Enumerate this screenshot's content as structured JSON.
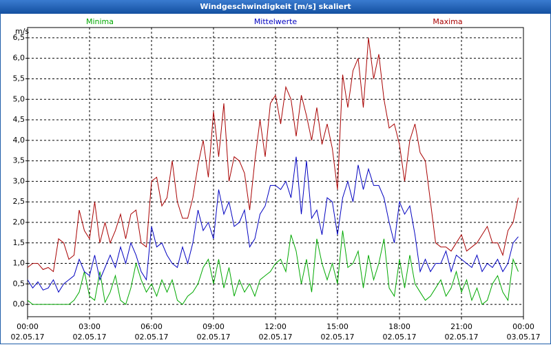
{
  "chart_data": {
    "type": "line",
    "title": "Windgeschwindigkeit [m/s] skaliert",
    "y_label": "m/s",
    "x": [
      "02.05.17 00:00",
      "02.05.17 00:15",
      "02.05.17 00:30",
      "02.05.17 00:45",
      "02.05.17 01:00",
      "02.05.17 01:15",
      "02.05.17 01:30",
      "02.05.17 01:45",
      "02.05.17 02:00",
      "02.05.17 02:15",
      "02.05.17 02:30",
      "02.05.17 02:45",
      "02.05.17 03:00",
      "02.05.17 03:15",
      "02.05.17 03:30",
      "02.05.17 03:45",
      "02.05.17 04:00",
      "02.05.17 04:15",
      "02.05.17 04:30",
      "02.05.17 04:45",
      "02.05.17 05:00",
      "02.05.17 05:15",
      "02.05.17 05:30",
      "02.05.17 05:45",
      "02.05.17 06:00",
      "02.05.17 06:15",
      "02.05.17 06:30",
      "02.05.17 06:45",
      "02.05.17 07:00",
      "02.05.17 07:15",
      "02.05.17 07:30",
      "02.05.17 07:45",
      "02.05.17 08:00",
      "02.05.17 08:15",
      "02.05.17 08:30",
      "02.05.17 08:45",
      "02.05.17 09:00",
      "02.05.17 09:15",
      "02.05.17 09:30",
      "02.05.17 09:45",
      "02.05.17 10:00",
      "02.05.17 10:15",
      "02.05.17 10:30",
      "02.05.17 10:45",
      "02.05.17 11:00",
      "02.05.17 11:15",
      "02.05.17 11:30",
      "02.05.17 11:45",
      "02.05.17 12:00",
      "02.05.17 12:15",
      "02.05.17 12:30",
      "02.05.17 12:45",
      "02.05.17 13:00",
      "02.05.17 13:15",
      "02.05.17 13:30",
      "02.05.17 13:45",
      "02.05.17 14:00",
      "02.05.17 14:15",
      "02.05.17 14:30",
      "02.05.17 14:45",
      "02.05.17 15:00",
      "02.05.17 15:15",
      "02.05.17 15:30",
      "02.05.17 15:45",
      "02.05.17 16:00",
      "02.05.17 16:15",
      "02.05.17 16:30",
      "02.05.17 16:45",
      "02.05.17 17:00",
      "02.05.17 17:15",
      "02.05.17 17:30",
      "02.05.17 17:45",
      "02.05.17 18:00",
      "02.05.17 18:15",
      "02.05.17 18:30",
      "02.05.17 18:45",
      "02.05.17 19:00",
      "02.05.17 19:15",
      "02.05.17 19:30",
      "02.05.17 19:45",
      "02.05.17 20:00",
      "02.05.17 20:15",
      "02.05.17 20:30",
      "02.05.17 20:45",
      "02.05.17 21:00",
      "02.05.17 21:15",
      "02.05.17 21:30",
      "02.05.17 21:45",
      "02.05.17 22:00",
      "02.05.17 22:15",
      "02.05.17 22:30",
      "02.05.17 22:45",
      "02.05.17 23:00",
      "02.05.17 23:15",
      "02.05.17 23:30",
      "02.05.17 23:45"
    ],
    "series": [
      {
        "name": "Minima",
        "color": "#00a800",
        "values": [
          0.1,
          0,
          0,
          0,
          0,
          0,
          0,
          0,
          0,
          0.1,
          0.3,
          0.8,
          0.2,
          0.1,
          0.8,
          0.05,
          0.3,
          0.7,
          0.1,
          0,
          0.4,
          1.0,
          0.6,
          0.3,
          0.5,
          0.2,
          0.6,
          0.3,
          0.6,
          0.1,
          0,
          0.2,
          0.3,
          0.5,
          0.9,
          1.1,
          0.5,
          1.1,
          0.4,
          0.9,
          0.2,
          0.6,
          0.3,
          0.5,
          0.2,
          0.6,
          0.7,
          0.8,
          1.0,
          1.1,
          0.8,
          1.7,
          1.3,
          0.5,
          1.1,
          0.3,
          1.6,
          1.0,
          0.6,
          1.0,
          0.5,
          1.8,
          0.9,
          1.0,
          1.3,
          0.4,
          1.2,
          0.6,
          1.0,
          1.6,
          0.4,
          0.2,
          1.1,
          0.4,
          1.2,
          0.5,
          0.3,
          0.1,
          0.2,
          0.4,
          0.6,
          0.2,
          0.4,
          0.8,
          0.3,
          0.6,
          0.1,
          0.4,
          0,
          0.1,
          0.5,
          0.7,
          0.3,
          0.1,
          1.1,
          0.8
        ]
      },
      {
        "name": "Mittelwerte",
        "color": "#0000c0",
        "values": [
          0.6,
          0.4,
          0.55,
          0.35,
          0.4,
          0.6,
          0.3,
          0.5,
          0.6,
          0.7,
          1.1,
          0.8,
          0.7,
          1.2,
          0.6,
          0.9,
          1.2,
          0.9,
          1.4,
          1.0,
          1.5,
          1.2,
          0.8,
          0.6,
          1.9,
          1.4,
          1.5,
          1.2,
          1.0,
          0.9,
          1.4,
          1.0,
          1.5,
          2.3,
          1.8,
          2.0,
          1.6,
          2.8,
          2.2,
          2.5,
          1.9,
          2.0,
          2.3,
          1.4,
          1.6,
          2.2,
          2.4,
          2.9,
          2.9,
          2.8,
          3.0,
          2.6,
          3.6,
          2.2,
          3.5,
          2.1,
          2.3,
          1.7,
          2.6,
          2.5,
          1.7,
          2.6,
          3.0,
          2.5,
          3.4,
          2.8,
          3.3,
          2.9,
          2.9,
          2.6,
          2.0,
          1.5,
          2.5,
          2.2,
          2.4,
          1.7,
          0.8,
          1.1,
          0.8,
          1.0,
          1.0,
          1.3,
          0.8,
          1.2,
          1.1,
          1.0,
          0.9,
          1.2,
          0.8,
          1.0,
          0.9,
          1.1,
          0.8,
          1.0,
          1.5,
          1.65
        ]
      },
      {
        "name": "Maxima",
        "color": "#a80000",
        "values": [
          0.9,
          1.0,
          1.0,
          0.85,
          0.9,
          0.8,
          1.6,
          1.5,
          1.1,
          1.2,
          2.3,
          1.8,
          1.6,
          2.5,
          1.5,
          2.0,
          1.5,
          1.8,
          2.2,
          1.6,
          2.2,
          2.3,
          1.5,
          1.4,
          3.0,
          3.1,
          2.4,
          2.6,
          3.5,
          2.5,
          2.1,
          2.1,
          2.6,
          3.4,
          4.0,
          3.1,
          4.7,
          3.6,
          4.9,
          3.0,
          3.6,
          3.5,
          3.2,
          2.3,
          3.5,
          4.5,
          3.6,
          4.9,
          5.1,
          4.4,
          5.3,
          5.0,
          4.1,
          5.1,
          4.6,
          4.0,
          4.8,
          3.9,
          4.4,
          3.8,
          2.8,
          5.6,
          4.8,
          5.7,
          6.0,
          4.8,
          6.5,
          5.5,
          6.1,
          5.0,
          4.3,
          4.4,
          3.9,
          3.0,
          4.0,
          4.4,
          3.7,
          3.5,
          2.5,
          1.5,
          1.4,
          1.4,
          1.3,
          1.5,
          1.7,
          1.3,
          1.4,
          1.5,
          1.7,
          1.9,
          1.5,
          1.5,
          1.2,
          1.8,
          2.0,
          2.6
        ]
      }
    ],
    "xlim": [
      "02.05.17 00:00",
      "03.05.17 00:00"
    ],
    "xticks": [
      {
        "value": "02.05.17 00:00",
        "label": [
          "00:00",
          "02.05.17"
        ]
      },
      {
        "value": "02.05.17 03:00",
        "label": [
          "03:00",
          "02.05.17"
        ]
      },
      {
        "value": "02.05.17 06:00",
        "label": [
          "06:00",
          "02.05.17"
        ]
      },
      {
        "value": "02.05.17 09:00",
        "label": [
          "09:00",
          "02.05.17"
        ]
      },
      {
        "value": "02.05.17 12:00",
        "label": [
          "12:00",
          "02.05.17"
        ]
      },
      {
        "value": "02.05.17 15:00",
        "label": [
          "15:00",
          "02.05.17"
        ]
      },
      {
        "value": "02.05.17 18:00",
        "label": [
          "18:00",
          "02.05.17"
        ]
      },
      {
        "value": "02.05.17 21:00",
        "label": [
          "21:00",
          "02.05.17"
        ]
      },
      {
        "value": "03.05.17 00:00",
        "label": [
          "00:00",
          "03.05.17"
        ]
      }
    ],
    "ylim": [
      -0.3,
      6.75
    ],
    "yticks": [
      {
        "value": 0,
        "label": "0,0"
      },
      {
        "value": 0.5,
        "label": "0,5"
      },
      {
        "value": 1,
        "label": "1,0"
      },
      {
        "value": 1.5,
        "label": "1,5"
      },
      {
        "value": 2,
        "label": "2,0"
      },
      {
        "value": 2.5,
        "label": "2,5"
      },
      {
        "value": 3,
        "label": "3,0"
      },
      {
        "value": 3.5,
        "label": "3,5"
      },
      {
        "value": 4,
        "label": "4,0"
      },
      {
        "value": 4.5,
        "label": "4,5"
      },
      {
        "value": 5,
        "label": "5,0"
      },
      {
        "value": 5.5,
        "label": "5,5"
      },
      {
        "value": 6,
        "label": "6,0"
      },
      {
        "value": 6.5,
        "label": "6,5"
      }
    ],
    "grid": true
  }
}
